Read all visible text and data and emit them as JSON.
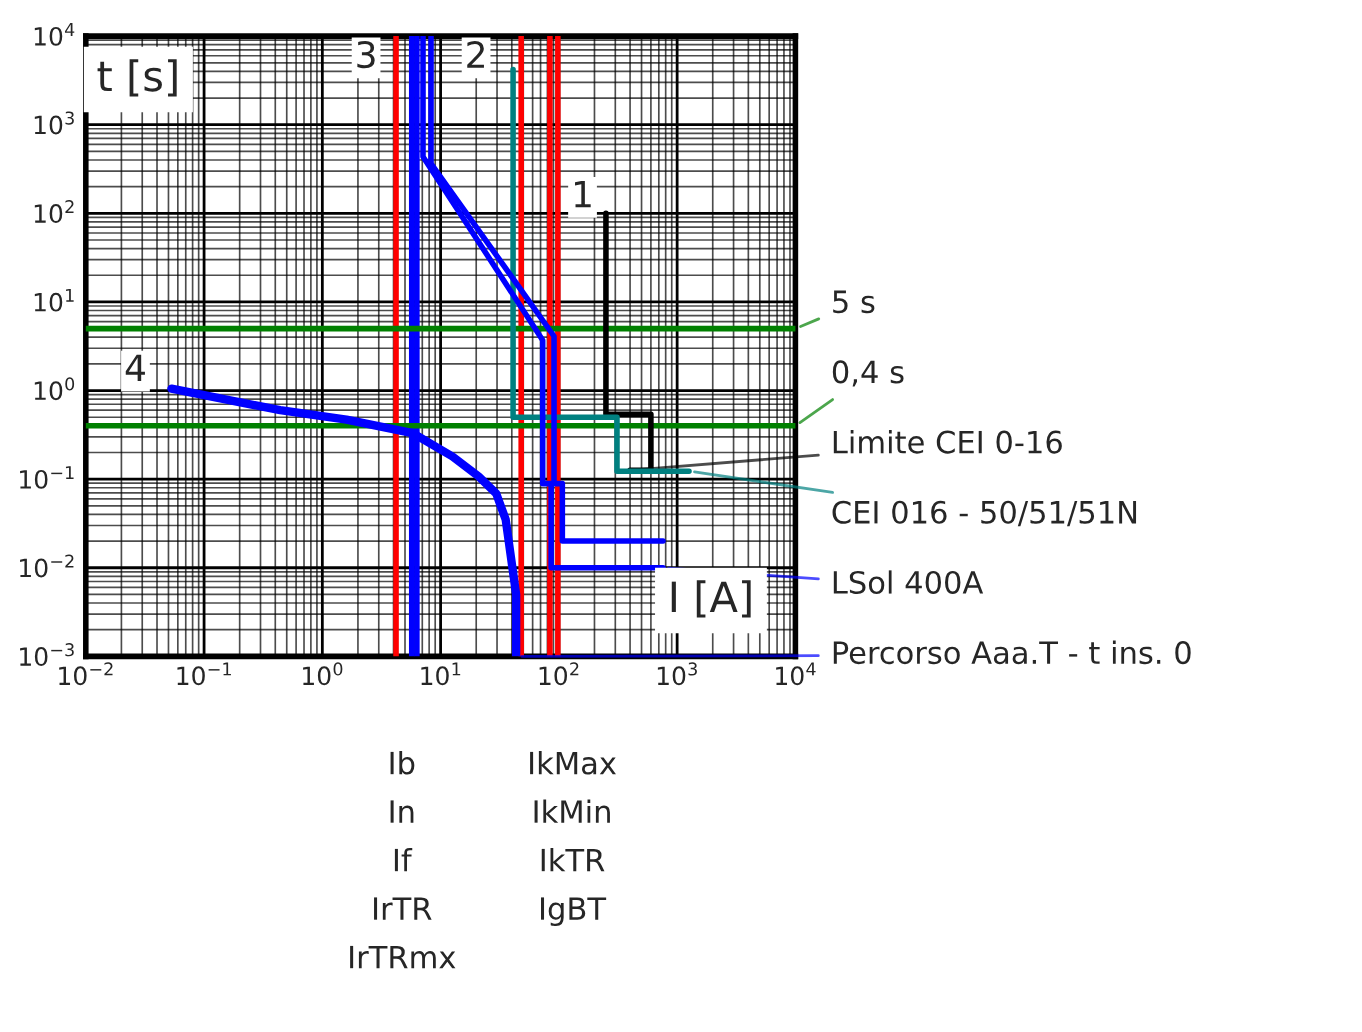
{
  "chart_data": {
    "type": "line",
    "ylabel": "t [s]",
    "xlabel": "I [A]",
    "log": "xy",
    "grid": true,
    "legend": "right",
    "marker": "none",
    "xlim": [
      0.01,
      10000
    ],
    "ylim": [
      0.001,
      10000
    ],
    "xticks": [
      {
        "value": 0.01,
        "label": "10$^{−2}$"
      },
      {
        "value": 0.1,
        "label": "10$^{−1}$"
      },
      {
        "value": 1,
        "label": "10$^{0}$"
      },
      {
        "value": 10,
        "label": "10$^{1}$"
      },
      {
        "value": 100,
        "label": "10$^{2}$"
      },
      {
        "value": 1000,
        "label": "10$^{3}$"
      },
      {
        "value": 10000,
        "label": "10$^{4}$"
      }
    ],
    "yticks": [
      {
        "value": 0.001,
        "label": "10$^{−3}$"
      },
      {
        "value": 0.01,
        "label": "10$^{−2}$"
      },
      {
        "value": 0.1,
        "label": "10$^{−1}$"
      },
      {
        "value": 1,
        "label": "10$^{0}$"
      },
      {
        "value": 10,
        "label": "10$^{1}$"
      },
      {
        "value": 100,
        "label": "10$^{2}$"
      },
      {
        "value": 1000,
        "label": "10$^{3}$"
      },
      {
        "value": 10000,
        "label": "10$^{4}$"
      }
    ],
    "series": [
      {
        "name": "5 s",
        "color": "#008000",
        "x": [
          0.01,
          10000
        ],
        "values": [
          5,
          5
        ]
      },
      {
        "name": "0,4 s",
        "color": "#008000",
        "x": [
          0.01,
          10000
        ],
        "values": [
          0.4,
          0.4
        ]
      },
      {
        "name": "Limite CEI 0-16",
        "color": "#000000",
        "x": [
          250,
          250,
          600,
          600,
          400
        ],
        "values": [
          100,
          0.54,
          0.54,
          0.126,
          0.126
        ]
      },
      {
        "name": "CEI 016 - 50/51/51N",
        "color": "#008080",
        "x": [
          41,
          41,
          310,
          310,
          1260
        ],
        "values": [
          4200,
          0.5,
          0.5,
          0.123,
          0.123
        ]
      },
      {
        "name": "LSol 400A",
        "color": "#0000ff",
        "x": [
          7.1,
          7.1,
          73,
          73,
          86,
          86,
          760
        ],
        "values": [
          10000,
          435,
          3.7,
          0.089,
          0.089,
          0.01,
          0.01
        ]
      },
      {
        "color": "#0000ff",
        "x": [
          8.3,
          8.3,
          91,
          91,
          107,
          107,
          760
        ],
        "values": [
          10000,
          365,
          4.1,
          0.089,
          0.089,
          0.02,
          0.02
        ]
      },
      {
        "name": "Percorso Aaa.T - t ins. 0",
        "color": "#0000ff",
        "x": [
          0.053,
          0.44,
          1.6,
          5.8,
          12.6,
          21,
          29.5,
          35.5,
          43.5,
          43.5
        ],
        "values": [
          1.05,
          0.6,
          0.47,
          0.33,
          0.18,
          0.107,
          0.069,
          0.035,
          0.005,
          0.001
        ]
      }
    ],
    "ref_lines": [
      {
        "axis": "x",
        "value": 4.2,
        "color": "#ff0000"
      },
      {
        "axis": "x",
        "value": 5.7,
        "color": "#0000ff"
      },
      {
        "axis": "x",
        "value": 6.3,
        "color": "#0000ff"
      },
      {
        "axis": "x",
        "value": 48,
        "color": "#ff0000"
      },
      {
        "axis": "x",
        "value": 84,
        "color": "#ff0000"
      },
      {
        "axis": "x",
        "value": 98,
        "color": "#ff0000"
      }
    ],
    "annotations": [
      "1",
      "2",
      "3",
      "4",
      "Ib",
      "In",
      "If",
      "IrTR",
      "IrTRmx",
      "IkMax",
      "IkMin",
      "IkTR",
      "IgBT"
    ]
  }
}
